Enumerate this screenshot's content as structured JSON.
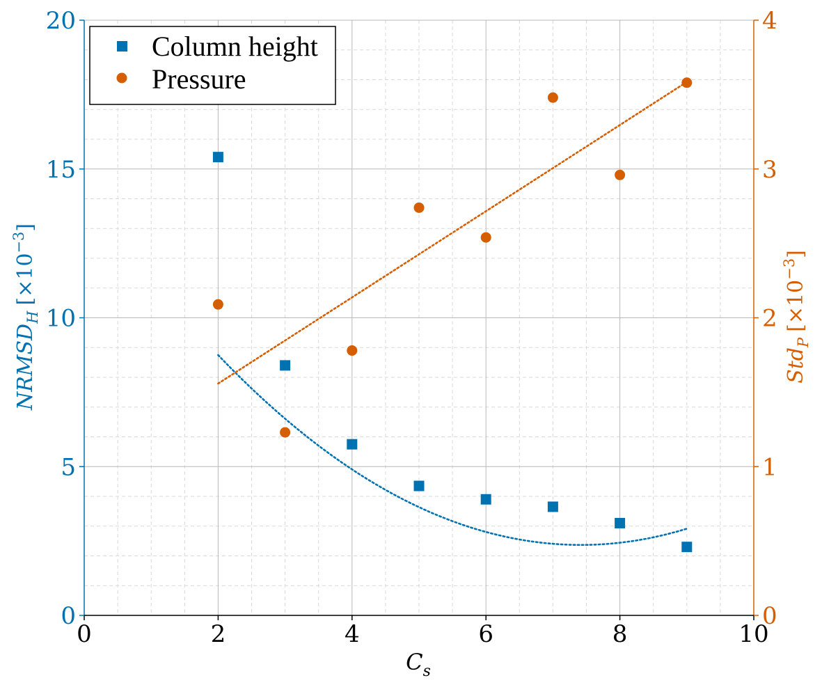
{
  "chart_data": {
    "type": "scatter",
    "xlabel": "C_s",
    "x_ticks": [
      "0",
      "2",
      "4",
      "6",
      "8",
      "10"
    ],
    "xlim": [
      0,
      10
    ],
    "y_left": {
      "label_main": "NRMSD",
      "label_sub": "H",
      "label_unit": "[×10",
      "label_exp": "−3",
      "label_close": "]",
      "ticks": [
        "0",
        "5",
        "10",
        "15",
        "20"
      ],
      "ylim": [
        0,
        20
      ],
      "color": "#0072B2"
    },
    "y_right": {
      "label_main": "Std",
      "label_sub": "P",
      "label_unit": "[×10",
      "label_exp": "−3",
      "label_close": "]",
      "ticks": [
        "0",
        "1",
        "2",
        "3",
        "4"
      ],
      "ylim": [
        0,
        4
      ],
      "color": "#D55E00"
    },
    "series": [
      {
        "name": "Column height",
        "axis": "left",
        "marker": "square",
        "color": "#0072B2",
        "x": [
          2,
          3,
          4,
          5,
          6,
          7,
          8,
          9
        ],
        "y": [
          15.4,
          8.4,
          5.75,
          4.35,
          3.9,
          3.65,
          3.1,
          2.3
        ],
        "fit": {
          "kind": "quadratic",
          "coef": [
            0.2175,
            -3.226,
            14.33
          ],
          "x_range": [
            2,
            9
          ]
        }
      },
      {
        "name": "Pressure",
        "axis": "right",
        "marker": "circle",
        "color": "#D55E00",
        "x": [
          2,
          3,
          4,
          5,
          6,
          7,
          8,
          9
        ],
        "y": [
          2.09,
          1.23,
          1.78,
          2.74,
          2.54,
          3.48,
          2.96,
          3.58
        ],
        "fit": {
          "kind": "linear",
          "coef": [
            0.2896,
            0.9788
          ],
          "x_range": [
            2,
            9
          ]
        }
      }
    ],
    "legend": {
      "position": "top-left",
      "entries": [
        "Column height",
        "Pressure"
      ]
    },
    "grid": {
      "major": true,
      "minor": true
    }
  }
}
